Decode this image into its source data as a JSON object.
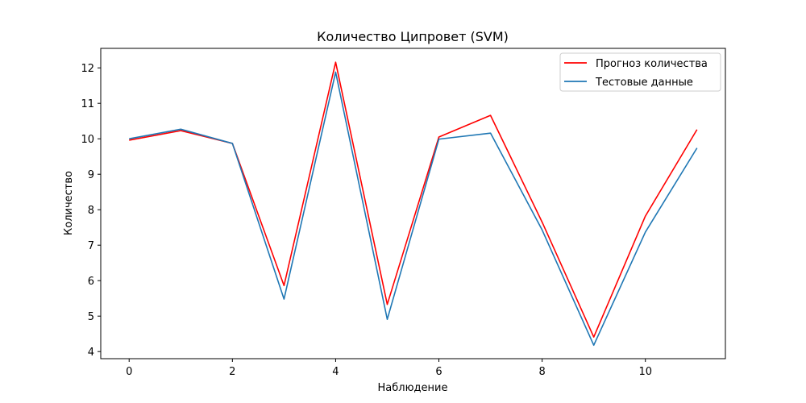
{
  "chart_data": {
    "type": "line",
    "title": "Количество Ципровет (SVM)",
    "xlabel": "Наблюдение",
    "ylabel": "Количество",
    "xlim": [
      -0.55,
      11.55
    ],
    "ylim": [
      3.8,
      12.55
    ],
    "xticks": [
      0,
      2,
      4,
      6,
      8,
      10
    ],
    "yticks": [
      4,
      5,
      6,
      7,
      8,
      9,
      10,
      11,
      12
    ],
    "grid": false,
    "legend_position": "top-right",
    "x": [
      0,
      1,
      2,
      3,
      4,
      5,
      6,
      7,
      8,
      9,
      10,
      11
    ],
    "series": [
      {
        "name": "Прогноз количества",
        "color": "#ff0000",
        "values": [
          9.96,
          10.23,
          9.87,
          5.86,
          12.16,
          5.33,
          10.05,
          10.66,
          7.65,
          4.41,
          7.82,
          10.26
        ]
      },
      {
        "name": "Тестовые данные",
        "color": "#1f77b4",
        "values": [
          10.0,
          10.27,
          9.87,
          5.48,
          11.88,
          4.91,
          9.99,
          10.16,
          7.43,
          4.18,
          7.37,
          9.74
        ]
      }
    ]
  }
}
